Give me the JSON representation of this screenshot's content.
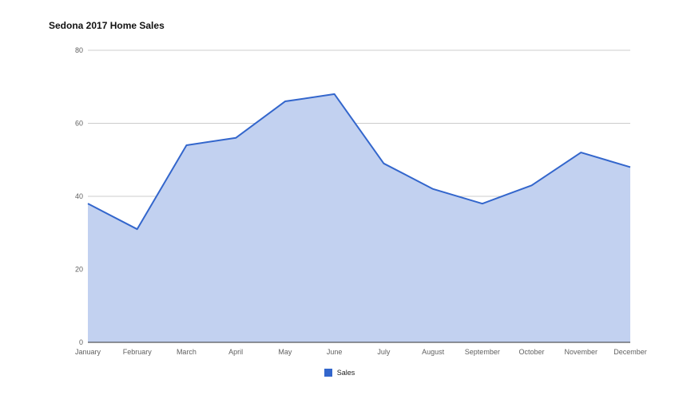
{
  "chart_data": {
    "type": "area",
    "title": "Sedona 2017 Home Sales",
    "xlabel": "",
    "ylabel": "",
    "categories": [
      "January",
      "February",
      "March",
      "April",
      "May",
      "June",
      "July",
      "August",
      "September",
      "October",
      "November",
      "December"
    ],
    "series": [
      {
        "name": "Sales",
        "values": [
          38,
          31,
          54,
          56,
          66,
          68,
          49,
          42,
          38,
          43,
          52,
          48
        ],
        "color": "#3366cc",
        "fill_color": "#c2d1f0"
      }
    ],
    "ylim": [
      0,
      80
    ],
    "yticks": [
      0,
      20,
      40,
      60,
      80
    ],
    "grid": true,
    "legend_position": "bottom"
  }
}
